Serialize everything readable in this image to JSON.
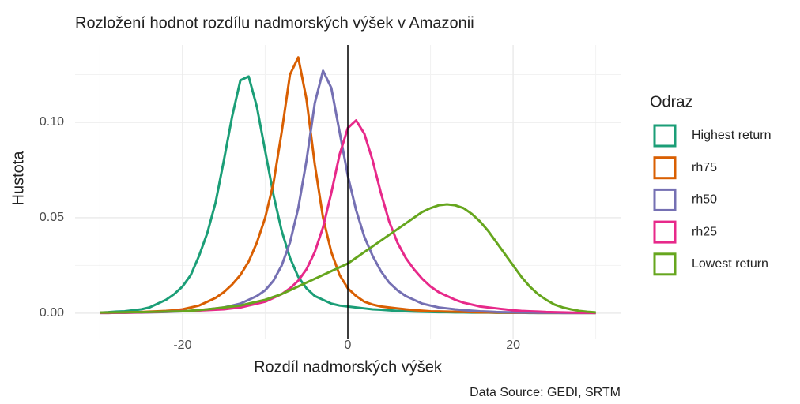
{
  "chart_data": {
    "type": "line",
    "title": "Rozložení hodnot rozdílu nadmorských výšek v Amazonii",
    "x_label": "Rozdíl nadmorských výšek",
    "y_label": "Hustota",
    "caption": "Data Source: GEDI, SRTM",
    "legend_title": "Odraz",
    "legend": "right",
    "grid": true,
    "vline": 0,
    "xlim": [
      -33,
      33
    ],
    "ylim": [
      -0.0137,
      0.1405
    ],
    "xticks": [
      -20,
      0,
      20
    ],
    "yticks": [
      {
        "value": 0,
        "label": "0.00"
      },
      {
        "value": 0.05,
        "label": "0.05"
      },
      {
        "value": 0.1,
        "label": "0.10"
      }
    ],
    "x_minor_grid": [
      -30,
      -10,
      10,
      30
    ],
    "y_minor_grid": [
      0.025,
      0.075,
      0.125
    ],
    "x": [
      -30,
      -29,
      -28,
      -27,
      -26,
      -25,
      -24,
      -23,
      -22,
      -21,
      -20,
      -19,
      -18,
      -17,
      -16,
      -15,
      -14,
      -13,
      -12,
      -11,
      -10,
      -9,
      -8,
      -7,
      -6,
      -5,
      -4,
      -3,
      -2,
      -1,
      0,
      1,
      2,
      3,
      4,
      5,
      6,
      7,
      8,
      9,
      10,
      11,
      12,
      13,
      14,
      15,
      16,
      17,
      18,
      19,
      20,
      21,
      22,
      23,
      24,
      25,
      26,
      27,
      28,
      29,
      30
    ],
    "series": [
      {
        "name": "Highest return",
        "color": "#1b9e77",
        "values": [
          0.0003,
          0.0005,
          0.0008,
          0.001,
          0.0015,
          0.002,
          0.003,
          0.005,
          0.007,
          0.01,
          0.014,
          0.02,
          0.03,
          0.042,
          0.058,
          0.08,
          0.103,
          0.122,
          0.124,
          0.108,
          0.085,
          0.062,
          0.043,
          0.029,
          0.019,
          0.013,
          0.009,
          0.007,
          0.005,
          0.004,
          0.0035,
          0.003,
          0.0025,
          0.002,
          0.0018,
          0.0015,
          0.0012,
          0.001,
          0.0008,
          0.0007,
          0.0006,
          0.0005,
          0.0005,
          0.0004,
          0.0004,
          0.0003,
          0.0003,
          0.0003,
          0.0002,
          0.0002,
          0.0002,
          0.0002,
          0.0001,
          0.0001,
          0.0001,
          0.0001,
          0.0001,
          0.0001,
          0.0001,
          0.0001,
          0.0001
        ]
      },
      {
        "name": "rh75",
        "color": "#d95f02",
        "values": [
          0.0002,
          0.0003,
          0.0003,
          0.0004,
          0.0005,
          0.0006,
          0.0008,
          0.001,
          0.0012,
          0.0015,
          0.002,
          0.003,
          0.004,
          0.006,
          0.008,
          0.011,
          0.015,
          0.02,
          0.027,
          0.037,
          0.05,
          0.068,
          0.095,
          0.125,
          0.134,
          0.112,
          0.078,
          0.05,
          0.032,
          0.02,
          0.013,
          0.009,
          0.006,
          0.0045,
          0.0035,
          0.003,
          0.0025,
          0.002,
          0.0016,
          0.0013,
          0.001,
          0.0009,
          0.0008,
          0.0007,
          0.0006,
          0.0005,
          0.0004,
          0.0004,
          0.0003,
          0.0003,
          0.0002,
          0.0002,
          0.0002,
          0.0001,
          0.0001,
          0.0001,
          0.0001,
          0.0001,
          0.0001,
          0.0001,
          0.0001
        ]
      },
      {
        "name": "rh50",
        "color": "#7570b3",
        "values": [
          0.0001,
          0.0001,
          0.0002,
          0.0002,
          0.0003,
          0.0003,
          0.0004,
          0.0005,
          0.0006,
          0.0008,
          0.001,
          0.0012,
          0.0015,
          0.002,
          0.0025,
          0.003,
          0.004,
          0.005,
          0.007,
          0.009,
          0.012,
          0.017,
          0.025,
          0.037,
          0.055,
          0.08,
          0.11,
          0.127,
          0.118,
          0.095,
          0.072,
          0.054,
          0.04,
          0.03,
          0.022,
          0.016,
          0.012,
          0.009,
          0.007,
          0.005,
          0.004,
          0.003,
          0.0025,
          0.002,
          0.0016,
          0.0013,
          0.001,
          0.0008,
          0.0006,
          0.0005,
          0.0004,
          0.0003,
          0.0003,
          0.0002,
          0.0002,
          0.0002,
          0.0001,
          0.0001,
          0.0001,
          0.0001,
          0.0001
        ]
      },
      {
        "name": "rh25",
        "color": "#e7298a",
        "values": [
          0.0001,
          0.0001,
          0.0002,
          0.0002,
          0.0003,
          0.0004,
          0.0005,
          0.0006,
          0.0008,
          0.001,
          0.0011,
          0.0012,
          0.0014,
          0.0016,
          0.0018,
          0.002,
          0.0025,
          0.003,
          0.004,
          0.005,
          0.006,
          0.008,
          0.01,
          0.013,
          0.017,
          0.023,
          0.032,
          0.045,
          0.063,
          0.083,
          0.097,
          0.101,
          0.094,
          0.08,
          0.063,
          0.048,
          0.037,
          0.029,
          0.023,
          0.018,
          0.014,
          0.011,
          0.009,
          0.007,
          0.0055,
          0.0045,
          0.0035,
          0.003,
          0.0025,
          0.002,
          0.0015,
          0.0012,
          0.001,
          0.0008,
          0.0006,
          0.0005,
          0.0004,
          0.0003,
          0.0002,
          0.0002,
          0.0001
        ]
      },
      {
        "name": "Lowest return",
        "color": "#66a61e",
        "values": [
          0.0003,
          0.0003,
          0.0004,
          0.0004,
          0.0005,
          0.0005,
          0.0006,
          0.0007,
          0.0008,
          0.0009,
          0.001,
          0.0013,
          0.0016,
          0.002,
          0.0025,
          0.003,
          0.0035,
          0.004,
          0.005,
          0.006,
          0.007,
          0.0085,
          0.01,
          0.012,
          0.014,
          0.016,
          0.018,
          0.02,
          0.022,
          0.024,
          0.026,
          0.029,
          0.032,
          0.035,
          0.038,
          0.041,
          0.044,
          0.047,
          0.05,
          0.053,
          0.055,
          0.0565,
          0.057,
          0.0565,
          0.055,
          0.052,
          0.048,
          0.043,
          0.037,
          0.031,
          0.025,
          0.019,
          0.014,
          0.01,
          0.007,
          0.0045,
          0.003,
          0.002,
          0.0012,
          0.0007,
          0.0004
        ]
      }
    ]
  }
}
